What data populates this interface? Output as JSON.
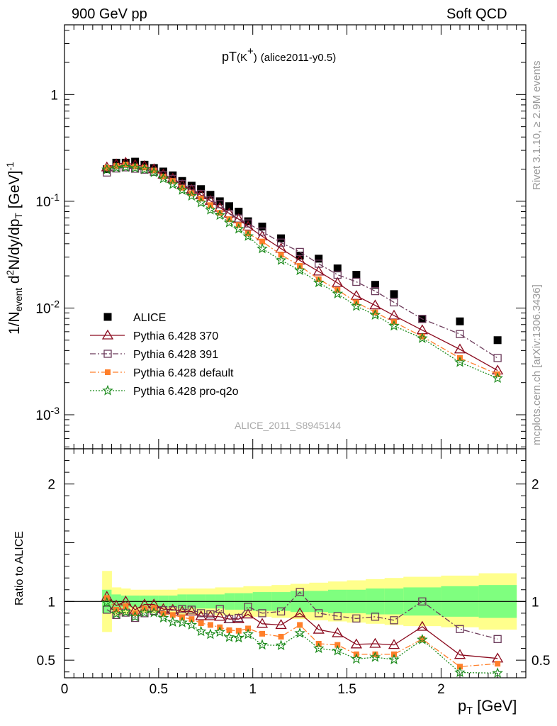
{
  "header": {
    "left": "900 GeV pp",
    "right": "Soft QCD"
  },
  "plot_title": {
    "main": "pT",
    "particle": "(K",
    "charge": "+",
    "close": ")",
    "tag": "(alice2011-y0.5)"
  },
  "side_text": {
    "rivet": "Rivet 3.1.10, ≥ 2.9M events",
    "mcplots": "mcplots.cern.ch [arXiv:1306.3436]"
  },
  "analysis_ref": "ALICE_2011_S8945144",
  "ylabel_main": {
    "a": "1/N",
    "a_sub": "event",
    "b": " d",
    "b_sup": "2",
    "c": "N/dy/dp",
    "c_sub": "T",
    "d": " [GeV]",
    "d_sup": "-1"
  },
  "ylabel_ratio": "Ratio to ALICE",
  "xlabel": {
    "p": "p",
    "sub": "T",
    "unit": " [GeV]"
  },
  "chart_data": {
    "type": "scatter",
    "x_axis": {
      "range": [
        0,
        2.45
      ],
      "ticks": [
        0,
        0.5,
        1,
        1.5,
        2
      ],
      "tick_labels": [
        "0",
        "0.5",
        "1",
        "1.5",
        "2"
      ]
    },
    "main_axis": {
      "scale": "log",
      "range": [
        0.00048,
        4.5
      ],
      "ticks": [
        0.001,
        0.01,
        0.1,
        1
      ],
      "tick_labels": [
        {
          "base": "10",
          "exp": "-3"
        },
        {
          "base": "10",
          "exp": "-2"
        },
        {
          "base": "10",
          "exp": "-1"
        },
        {
          "base": "1",
          "exp": ""
        }
      ]
    },
    "ratio_axis": {
      "scale": "linear",
      "range": [
        0.35,
        2.3
      ],
      "ticks": [
        0.5,
        1,
        2
      ],
      "tick_labels": [
        "0.5",
        "1",
        "2"
      ]
    },
    "x": [
      0.225,
      0.275,
      0.325,
      0.375,
      0.425,
      0.475,
      0.525,
      0.575,
      0.625,
      0.675,
      0.725,
      0.775,
      0.825,
      0.875,
      0.925,
      0.975,
      1.05,
      1.15,
      1.25,
      1.35,
      1.45,
      1.55,
      1.65,
      1.75,
      1.9,
      2.1,
      2.3
    ],
    "band": {
      "edges": [
        0.2,
        0.25,
        0.3,
        0.35,
        0.4,
        0.45,
        0.5,
        0.55,
        0.6,
        0.65,
        0.7,
        0.75,
        0.8,
        0.85,
        0.9,
        0.95,
        1.0,
        1.1,
        1.2,
        1.3,
        1.4,
        1.5,
        1.6,
        1.7,
        1.8,
        2.0,
        2.2,
        2.4
      ],
      "stat_sys": [
        0.26,
        0.12,
        0.11,
        0.1,
        0.1,
        0.1,
        0.1,
        0.1,
        0.11,
        0.11,
        0.11,
        0.11,
        0.12,
        0.12,
        0.12,
        0.13,
        0.13,
        0.14,
        0.15,
        0.16,
        0.17,
        0.18,
        0.19,
        0.2,
        0.21,
        0.22,
        0.24
      ],
      "stat": [
        0.1,
        0.06,
        0.05,
        0.05,
        0.05,
        0.05,
        0.05,
        0.05,
        0.06,
        0.06,
        0.06,
        0.06,
        0.06,
        0.07,
        0.07,
        0.07,
        0.08,
        0.08,
        0.09,
        0.09,
        0.1,
        0.1,
        0.11,
        0.11,
        0.12,
        0.13,
        0.14
      ],
      "stat_color": "#7fff7f",
      "stat_sys_color": "#ffff8c"
    },
    "series": [
      {
        "name": "ALICE",
        "legend": "ALICE",
        "color": "#000000",
        "marker": "filled-square",
        "line": "none",
        "values": [
          0.2,
          0.23,
          0.23,
          0.235,
          0.22,
          0.205,
          0.19,
          0.175,
          0.155,
          0.14,
          0.13,
          0.115,
          0.1,
          0.09,
          0.08,
          0.065,
          0.058,
          0.045,
          0.031,
          0.029,
          0.0235,
          0.0205,
          0.0165,
          0.0135,
          0.0079,
          0.0075,
          0.005
        ],
        "ratio": [
          1,
          1,
          1,
          1,
          1,
          1,
          1,
          1,
          1,
          1,
          1,
          1,
          1,
          1,
          1,
          1,
          1,
          1,
          1,
          1,
          1,
          1,
          1,
          1,
          1,
          1,
          1
        ]
      },
      {
        "name": "Pythia 6.428 370",
        "legend": "Pythia 6.428 370",
        "color": "#8b0a1e",
        "marker": "open-triangle",
        "line": "solid",
        "values": [
          0.208,
          0.222,
          0.23,
          0.219,
          0.214,
          0.2,
          0.178,
          0.163,
          0.142,
          0.128,
          0.114,
          0.101,
          0.087,
          0.077,
          0.068,
          0.058,
          0.047,
          0.036,
          0.0279,
          0.022,
          0.0172,
          0.013,
          0.0106,
          0.0085,
          0.0062,
          0.0041,
          0.0026
        ],
        "ratio": [
          1.04,
          0.965,
          1.0,
          0.93,
          0.975,
          0.975,
          0.935,
          0.93,
          0.915,
          0.915,
          0.875,
          0.875,
          0.87,
          0.85,
          0.85,
          0.89,
          0.81,
          0.8,
          0.9,
          0.76,
          0.73,
          0.635,
          0.64,
          0.63,
          0.785,
          0.545,
          0.515
        ]
      },
      {
        "name": "Pythia 6.428 391",
        "legend": "Pythia 6.428 391",
        "color": "#6b3a5a",
        "marker": "open-square",
        "line": "dash-dot",
        "values": [
          0.186,
          0.203,
          0.208,
          0.202,
          0.198,
          0.189,
          0.176,
          0.162,
          0.145,
          0.13,
          0.117,
          0.102,
          0.094,
          0.076,
          0.069,
          0.062,
          0.052,
          0.041,
          0.0335,
          0.026,
          0.0205,
          0.0176,
          0.0144,
          0.0113,
          0.0079,
          0.0057,
          0.0034
        ],
        "ratio": [
          0.93,
          0.885,
          0.905,
          0.86,
          0.9,
          0.92,
          0.925,
          0.925,
          0.935,
          0.93,
          0.9,
          0.89,
          0.935,
          0.85,
          0.86,
          0.955,
          0.9,
          0.915,
          1.08,
          0.9,
          0.875,
          0.855,
          0.87,
          0.84,
          1.0,
          0.765,
          0.68
        ]
      },
      {
        "name": "Pythia 6.428 default",
        "legend": "Pythia 6.428 default",
        "color": "#ff7f2a",
        "marker": "filled-square-small",
        "line": "dash-dot",
        "values": [
          0.206,
          0.214,
          0.221,
          0.212,
          0.207,
          0.194,
          0.17,
          0.155,
          0.134,
          0.119,
          0.106,
          0.092,
          0.078,
          0.068,
          0.06,
          0.05,
          0.042,
          0.0316,
          0.0248,
          0.0186,
          0.0148,
          0.0113,
          0.0091,
          0.0074,
          0.0054,
          0.0034,
          0.0024
        ],
        "ratio": [
          1.03,
          0.93,
          0.96,
          0.9,
          0.94,
          0.945,
          0.895,
          0.885,
          0.865,
          0.85,
          0.815,
          0.8,
          0.78,
          0.755,
          0.75,
          0.77,
          0.725,
          0.7,
          0.8,
          0.64,
          0.63,
          0.55,
          0.55,
          0.55,
          0.68,
          0.445,
          0.47
        ]
      },
      {
        "name": "Pythia 6.428 pro-q2o",
        "legend": "Pythia 6.428 pro-q2o",
        "color": "#1a8a1a",
        "marker": "open-star",
        "line": "dotted",
        "values": [
          0.198,
          0.206,
          0.209,
          0.205,
          0.199,
          0.186,
          0.163,
          0.144,
          0.127,
          0.112,
          0.097,
          0.083,
          0.074,
          0.063,
          0.055,
          0.047,
          0.036,
          0.028,
          0.0225,
          0.0173,
          0.0136,
          0.0104,
          0.0086,
          0.0068,
          0.0052,
          0.0031,
          0.0022
        ],
        "ratio": [
          0.99,
          0.895,
          0.91,
          0.87,
          0.905,
          0.905,
          0.86,
          0.825,
          0.82,
          0.8,
          0.745,
          0.72,
          0.74,
          0.695,
          0.69,
          0.72,
          0.63,
          0.625,
          0.73,
          0.6,
          0.58,
          0.51,
          0.525,
          0.505,
          0.675,
          0.395,
          0.39
        ]
      }
    ]
  }
}
